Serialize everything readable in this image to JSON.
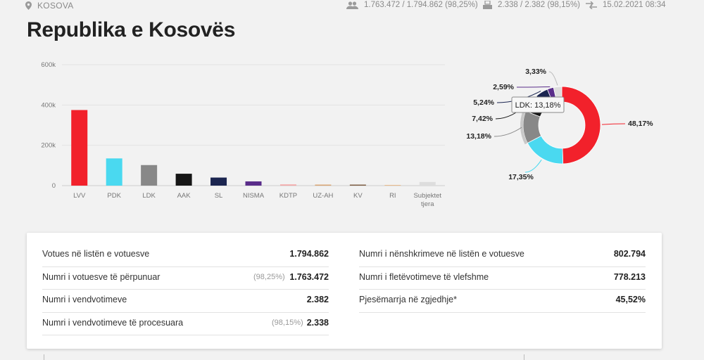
{
  "header": {
    "location": "KOSOVA",
    "voters_stat": "1.763.472 / 1.794.862 (98,25%)",
    "stations_stat": "2.338 / 2.382 (98,15%)",
    "updated_stat": "15.02.2021 08:34",
    "title": "Republika e Kosovës"
  },
  "chart_data": [
    {
      "type": "bar",
      "categories": [
        "LVV",
        "PDK",
        "LDK",
        "AAK",
        "SL",
        "NISMA",
        "KDTP",
        "UZ-AH",
        "KV",
        "RI",
        "Subjektet tjera"
      ],
      "values": [
        375000,
        135000,
        102000,
        59000,
        40000,
        21000,
        6000,
        5000,
        5000,
        3000,
        18000
      ],
      "colors": [
        "#f2212b",
        "#4ad9f0",
        "#888888",
        "#161616",
        "#1b2550",
        "#5a2d8a",
        "#f3a7a7",
        "#d9a36f",
        "#7a5a40",
        "#e8b27a",
        "#dddddd"
      ],
      "ylim": [
        0,
        600000
      ],
      "yticks": [
        "0",
        "200k",
        "400k",
        "600k"
      ],
      "ytick_values": [
        0,
        200000,
        400000,
        600000
      ],
      "grid": true
    },
    {
      "type": "pie",
      "labels": [
        "LVV",
        "PDK",
        "LDK",
        "AAK",
        "SL",
        "NISMA",
        "Subjektet tjera"
      ],
      "values": [
        48.17,
        17.35,
        13.18,
        7.42,
        5.24,
        2.59,
        3.33
      ],
      "colors": [
        "#f2212b",
        "#4ad9f0",
        "#888888",
        "#161616",
        "#1b2550",
        "#5a2d8a",
        "#dddddd"
      ],
      "data_labels": [
        "48,17%",
        "17,35%",
        "13,18%",
        "7,42%",
        "5,24%",
        "2,59%",
        "3,33%"
      ],
      "tooltip": "LDK: 13,18%"
    }
  ],
  "summary": {
    "left": [
      {
        "label": "Votues në listën e votuesve",
        "value": "1.794.862",
        "pct": ""
      },
      {
        "label": "Numri i votuesve të përpunuar",
        "value": "1.763.472",
        "pct": "(98,25%)"
      },
      {
        "label": "Numri i vendvotimeve",
        "value": "2.382",
        "pct": ""
      },
      {
        "label": "Numri i vendvotimeve të procesuara",
        "value": "2.338",
        "pct": "(98,15%)"
      }
    ],
    "right": [
      {
        "label": "Numri i nënshkrimeve në listën e votuesve",
        "value": "802.794"
      },
      {
        "label": "Numri i fletëvotimeve të vlefshme",
        "value": "778.213"
      },
      {
        "label": "Pjesëmarrja në zgjedhje*",
        "value": "45,52%"
      }
    ]
  }
}
